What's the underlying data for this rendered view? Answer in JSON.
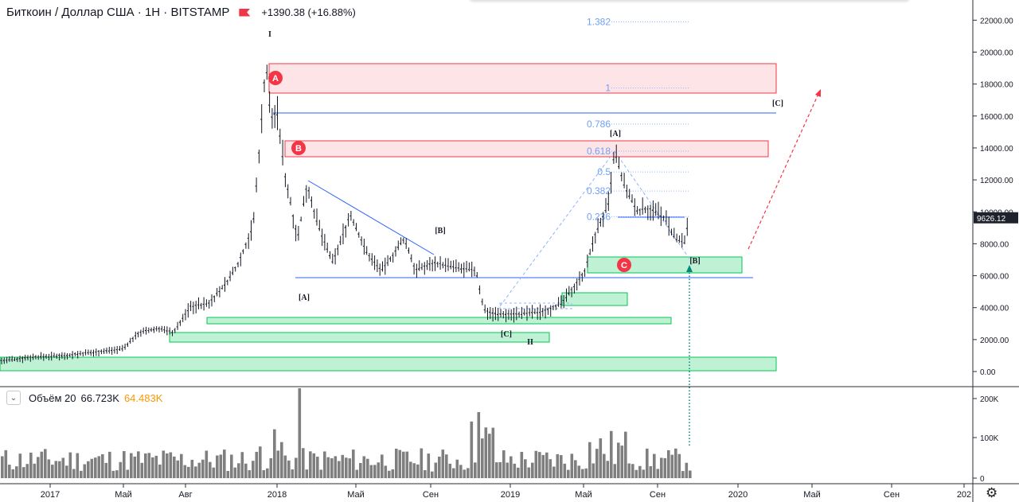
{
  "header": {
    "symbol": "Биткоин / Доллар США · 1Н · BITSTAMP",
    "change": "+1390.38 (+16.88%)",
    "flag_icon": "flag-icon"
  },
  "volume": {
    "label": "Объём 20",
    "value1": "66.723K",
    "value2": "64.483K"
  },
  "price_badge": "9626.12",
  "colors": {
    "price_box": "#1e222d",
    "resistance": "#f23645",
    "support": "#00c853",
    "line": "#2962ff",
    "volume": "#7f7f7f"
  },
  "chart_data": {
    "type": "bar",
    "title": "Биткоин / Доллар США · 1Н · BITSTAMP",
    "y_ticks": [
      "22000.00",
      "20000.00",
      "18000.00",
      "16000.00",
      "14000.00",
      "12000.00",
      "10000.00",
      "8000.00",
      "6000.00",
      "4000.00",
      "2000.00",
      "0.00"
    ],
    "x_ticks": [
      "2017",
      "Май",
      "Авг",
      "2018",
      "Май",
      "Сен",
      "2019",
      "Май",
      "Сен",
      "2020",
      "Май",
      "Сен",
      "202"
    ],
    "volume_ticks": [
      "200K",
      "100K",
      "0"
    ],
    "fib_levels": [
      {
        "label": "1.382",
        "value": 21900
      },
      {
        "label": "1",
        "value": 17750
      },
      {
        "label": "0.786",
        "value": 15500
      },
      {
        "label": "0.618",
        "value": 13800
      },
      {
        "label": "0.5",
        "value": 12500
      },
      {
        "label": "0.382",
        "value": 11300
      },
      {
        "label": "0.236",
        "value": 9700
      }
    ],
    "wave_labels": [
      {
        "text": "I",
        "value": 21100
      },
      {
        "text": "[A]",
        "value": 4600
      },
      {
        "text": "[B]",
        "value": 8800
      },
      {
        "text": "[C]",
        "value": 2300
      },
      {
        "text": "II",
        "value": 1800
      },
      {
        "text": "[A]",
        "value": 14900
      },
      {
        "text": "[B]",
        "value": 7900
      },
      {
        "text": "[C]",
        "value": 16800
      }
    ],
    "zones": [
      {
        "marker": "A",
        "kind": "resistance",
        "low": 17400,
        "high": 19300
      },
      {
        "marker": "B",
        "kind": "resistance",
        "low": 13500,
        "high": 14500
      },
      {
        "marker": "C",
        "kind": "support",
        "low": 6100,
        "high": 7200
      }
    ],
    "current_price": 9626.12,
    "ylim": [
      -1000,
      23000
    ]
  }
}
